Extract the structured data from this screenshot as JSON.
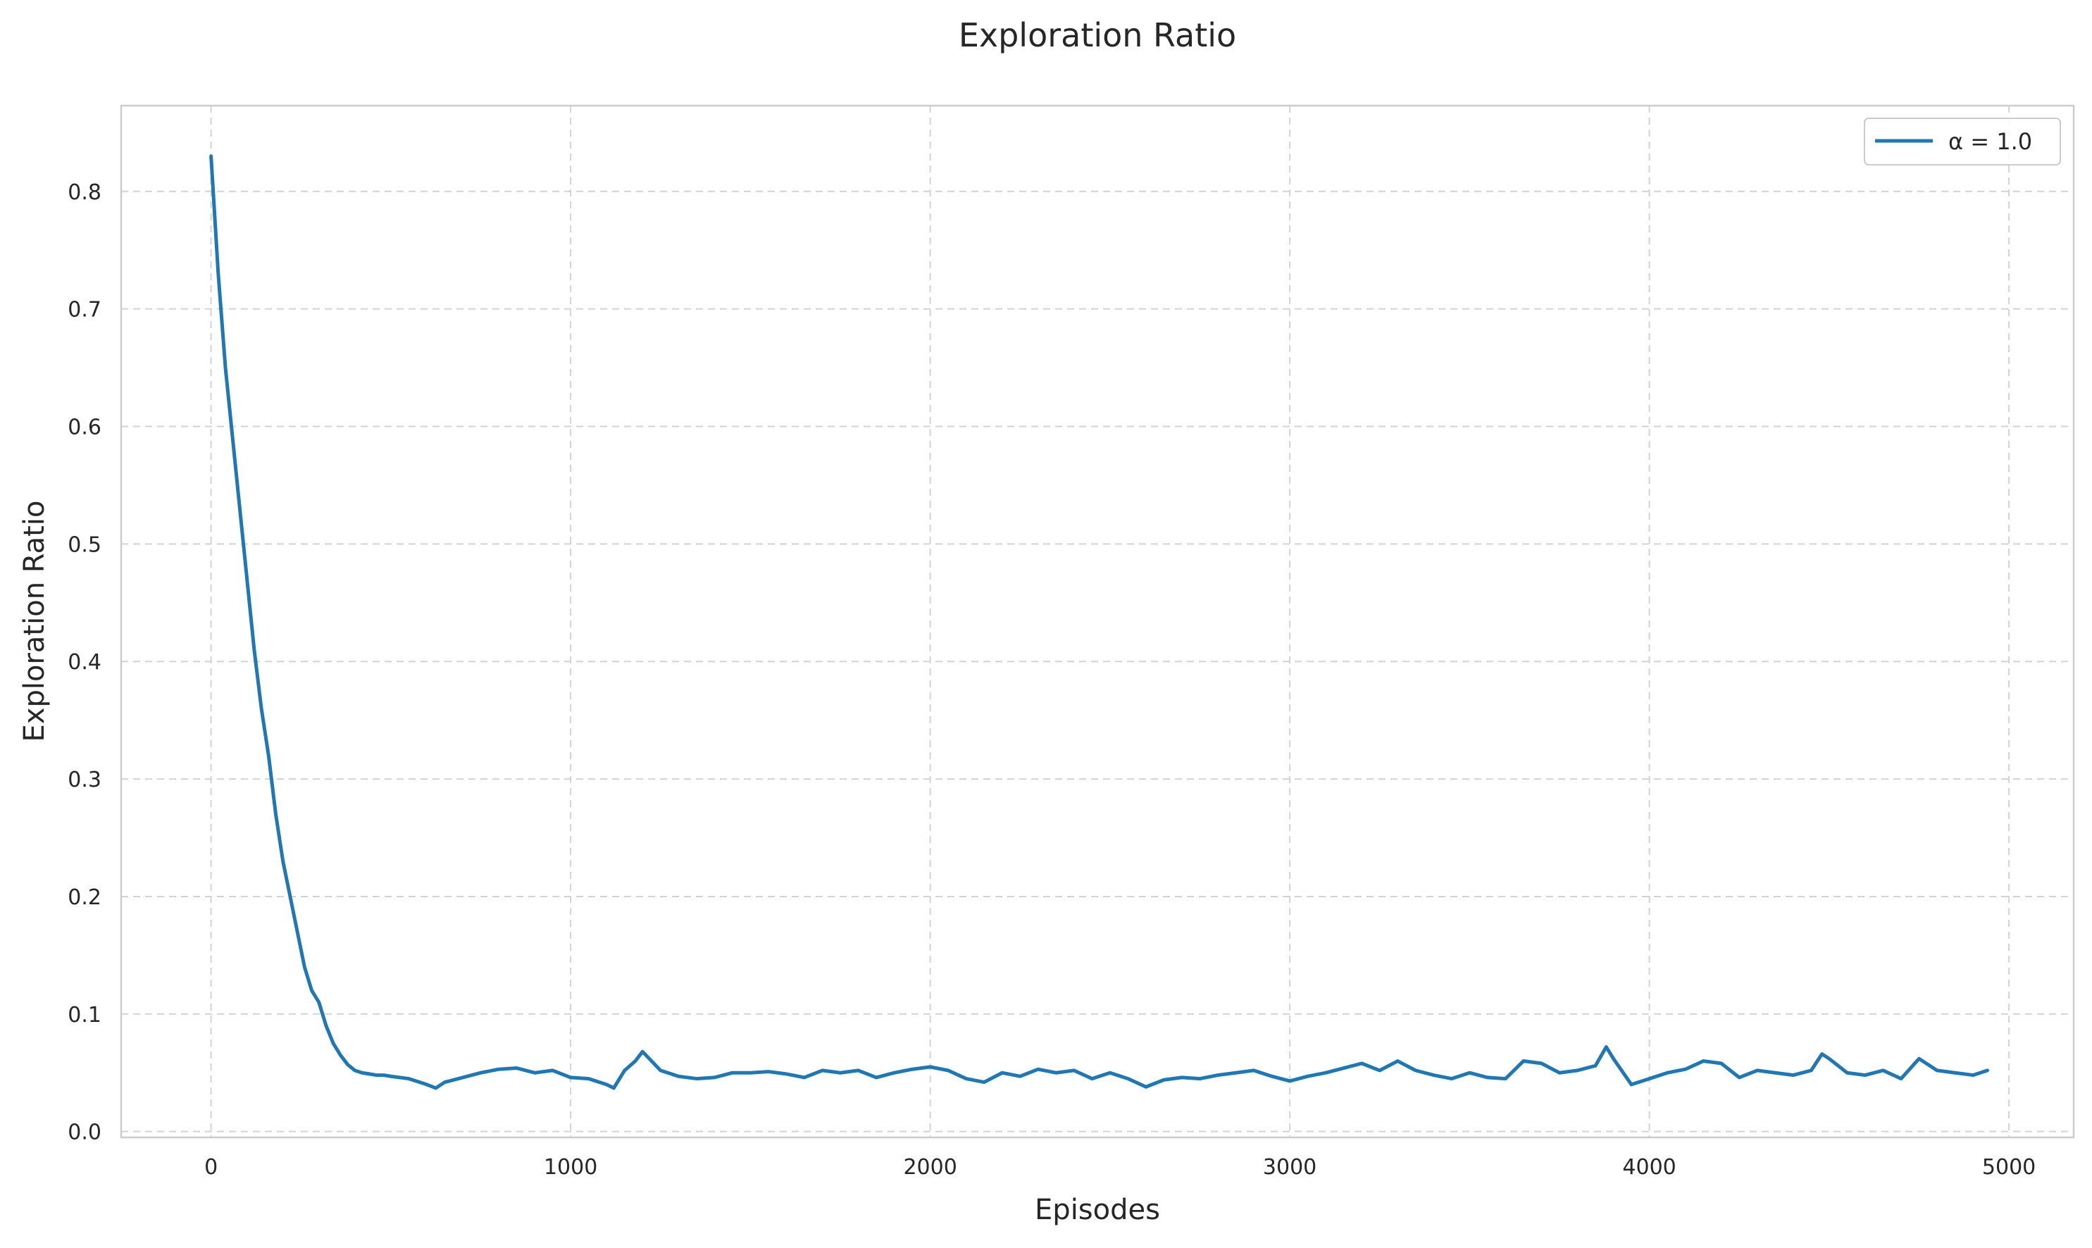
{
  "chart_data": {
    "type": "line",
    "title": "Exploration Ratio",
    "xlabel": "Episodes",
    "ylabel": "Exploration Ratio",
    "xlim": [
      -250,
      5180
    ],
    "ylim": [
      -0.005,
      0.873
    ],
    "xticks": [
      0,
      1000,
      2000,
      3000,
      4000,
      5000
    ],
    "xtick_labels": [
      "0",
      "1000",
      "2000",
      "3000",
      "4000",
      "5000"
    ],
    "yticks": [
      0.0,
      0.1,
      0.2,
      0.3,
      0.4,
      0.5,
      0.6,
      0.7,
      0.8
    ],
    "ytick_labels": [
      "0.0",
      "0.1",
      "0.2",
      "0.3",
      "0.4",
      "0.5",
      "0.6",
      "0.7",
      "0.8"
    ],
    "grid": true,
    "legend_position": "top-right",
    "series": [
      {
        "name": "α = 1.0",
        "color": "#1f77b4",
        "x": [
          0,
          20,
          40,
          60,
          80,
          100,
          120,
          140,
          160,
          180,
          200,
          220,
          240,
          260,
          280,
          300,
          320,
          340,
          360,
          380,
          400,
          420,
          440,
          460,
          480,
          500,
          550,
          600,
          625,
          650,
          700,
          750,
          800,
          850,
          900,
          950,
          1000,
          1050,
          1100,
          1120,
          1150,
          1180,
          1200,
          1250,
          1300,
          1350,
          1400,
          1450,
          1500,
          1550,
          1600,
          1650,
          1700,
          1750,
          1800,
          1850,
          1900,
          1950,
          2000,
          2050,
          2100,
          2150,
          2200,
          2250,
          2300,
          2350,
          2400,
          2450,
          2500,
          2550,
          2600,
          2650,
          2700,
          2750,
          2800,
          2850,
          2900,
          2950,
          3000,
          3050,
          3100,
          3150,
          3200,
          3250,
          3300,
          3350,
          3400,
          3450,
          3500,
          3550,
          3600,
          3650,
          3700,
          3750,
          3800,
          3850,
          3880,
          3900,
          3950,
          4000,
          4050,
          4100,
          4150,
          4200,
          4250,
          4300,
          4350,
          4400,
          4450,
          4480,
          4500,
          4550,
          4600,
          4650,
          4700,
          4750,
          4800,
          4850,
          4900,
          4940
        ],
        "y": [
          0.83,
          0.73,
          0.65,
          0.59,
          0.53,
          0.47,
          0.41,
          0.36,
          0.32,
          0.27,
          0.23,
          0.2,
          0.17,
          0.14,
          0.12,
          0.11,
          0.09,
          0.075,
          0.065,
          0.057,
          0.052,
          0.05,
          0.049,
          0.048,
          0.048,
          0.047,
          0.045,
          0.04,
          0.037,
          0.042,
          0.046,
          0.05,
          0.053,
          0.054,
          0.05,
          0.052,
          0.046,
          0.045,
          0.04,
          0.037,
          0.052,
          0.06,
          0.068,
          0.052,
          0.047,
          0.045,
          0.046,
          0.05,
          0.05,
          0.051,
          0.049,
          0.046,
          0.052,
          0.05,
          0.052,
          0.046,
          0.05,
          0.053,
          0.055,
          0.052,
          0.045,
          0.042,
          0.05,
          0.047,
          0.053,
          0.05,
          0.052,
          0.045,
          0.05,
          0.045,
          0.038,
          0.044,
          0.046,
          0.045,
          0.048,
          0.05,
          0.052,
          0.047,
          0.043,
          0.047,
          0.05,
          0.054,
          0.058,
          0.052,
          0.06,
          0.052,
          0.048,
          0.045,
          0.05,
          0.046,
          0.045,
          0.06,
          0.058,
          0.05,
          0.052,
          0.056,
          0.072,
          0.062,
          0.04,
          0.045,
          0.05,
          0.053,
          0.06,
          0.058,
          0.046,
          0.052,
          0.05,
          0.048,
          0.052,
          0.066,
          0.062,
          0.05,
          0.048,
          0.052,
          0.045,
          0.062,
          0.052,
          0.05,
          0.048,
          0.052
        ]
      }
    ]
  }
}
